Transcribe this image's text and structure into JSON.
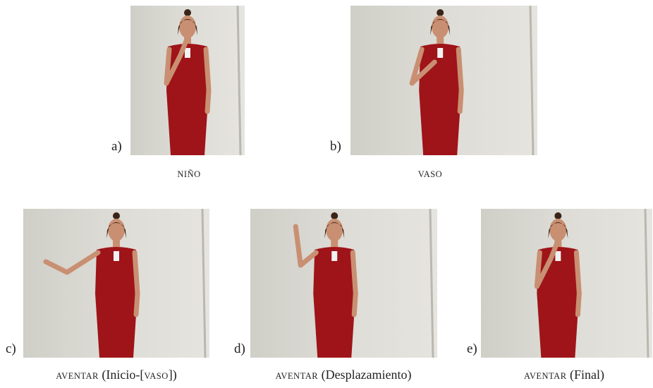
{
  "panels": [
    {
      "letter": "a)",
      "caption": [
        {
          "text": "NIÑO",
          "small": true
        }
      ]
    },
    {
      "letter": "b)",
      "caption": [
        {
          "text": "VASO",
          "small": true
        }
      ]
    },
    {
      "letter": "c)",
      "caption": [
        {
          "text": "AVENTAR",
          "small": true
        },
        {
          "text": " (Inicio-[",
          "small": false
        },
        {
          "text": "VASO",
          "small": true
        },
        {
          "text": "])",
          "small": false
        }
      ]
    },
    {
      "letter": "d)",
      "caption": [
        {
          "text": "AVENTAR",
          "small": true
        },
        {
          "text": " (Desplazamiento)",
          "small": false
        }
      ]
    },
    {
      "letter": "e)",
      "caption": [
        {
          "text": "AVENTAR",
          "small": true
        },
        {
          "text": " (Final)",
          "small": false
        }
      ]
    }
  ]
}
